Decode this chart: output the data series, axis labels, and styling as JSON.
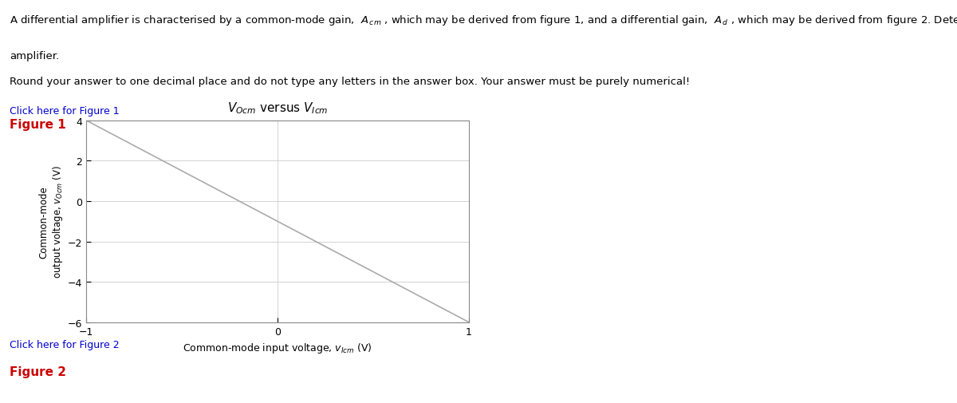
{
  "subtitle_text": "Round your answer to one decimal place and do not type any letters in the answer box. Your answer must be purely numerical!",
  "click_figure1_text": "Click here for Figure 1",
  "figure1_label": "Figure 1",
  "graph_title_part1": "$V_{Ocm}$",
  "graph_title_versus": " versus ",
  "graph_title_part2": "$V_{Icm}$",
  "xlabel_plain": "Common-mode input voltage, ",
  "xlabel_math": "$v_{Icm}$",
  "xlabel_unit": " (V)",
  "ylabel_line1": "Common-mode",
  "ylabel_line2": "output voltage, ",
  "ylabel_math": "$v_{Ocm}$",
  "ylabel_unit": " (V)",
  "x_data": [
    -1,
    1
  ],
  "y_data": [
    4,
    -6
  ],
  "xlim": [
    -1,
    1
  ],
  "ylim": [
    -6,
    4
  ],
  "xticks": [
    -1,
    0,
    1
  ],
  "yticks": [
    -6,
    -4,
    -2,
    0,
    2,
    4
  ],
  "click_figure2_text": "Click here for Figure 2",
  "figure2_label": "Figure 2",
  "line_color": "#aaaaaa",
  "background_color": "#ffffff",
  "grid_color": "#cccccc",
  "spine_color": "#888888"
}
